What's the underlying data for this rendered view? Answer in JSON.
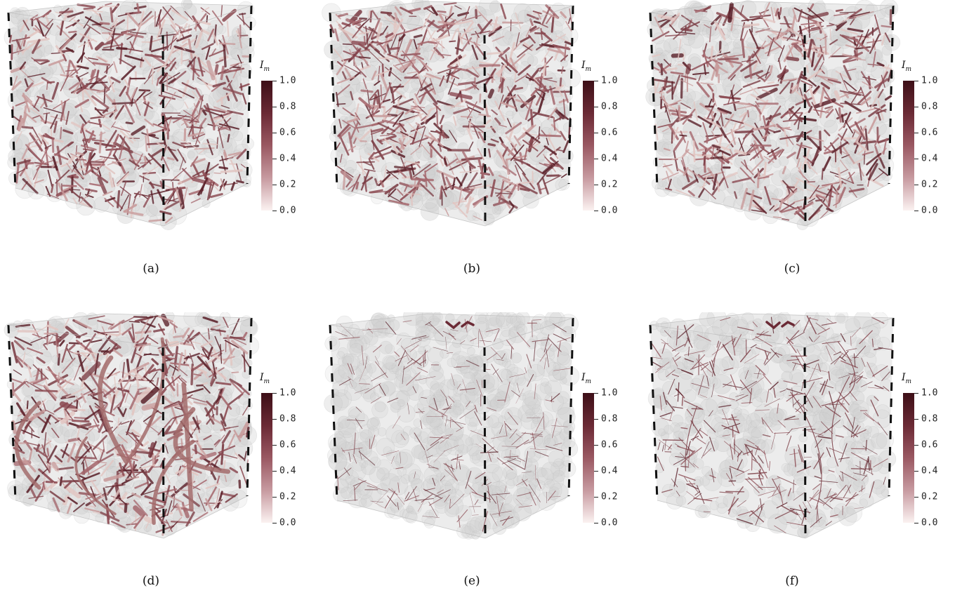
{
  "panels": [
    {
      "caption": "(a)",
      "density": "high",
      "thick": "some"
    },
    {
      "caption": "(b)",
      "density": "high",
      "thick": "some"
    },
    {
      "caption": "(c)",
      "density": "high",
      "thick": "some"
    },
    {
      "caption": "(d)",
      "density": "high",
      "thick": "many"
    },
    {
      "caption": "(e)",
      "density": "sparse",
      "thick": "none"
    },
    {
      "caption": "(f)",
      "density": "medium",
      "thick": "none"
    }
  ],
  "colorbar": {
    "label_main": "I",
    "label_sub": "m",
    "ticks": [
      "1.0",
      "0.8",
      "0.6",
      "0.4",
      "0.2",
      "0.0"
    ],
    "colors": [
      "#3d0f17",
      "#6b2a35",
      "#9a5862",
      "#c79aa0",
      "#fbf2f1"
    ]
  },
  "colors": {
    "network": "#7a3b43",
    "particles": "#d6d6d6",
    "edges": "#111111"
  }
}
